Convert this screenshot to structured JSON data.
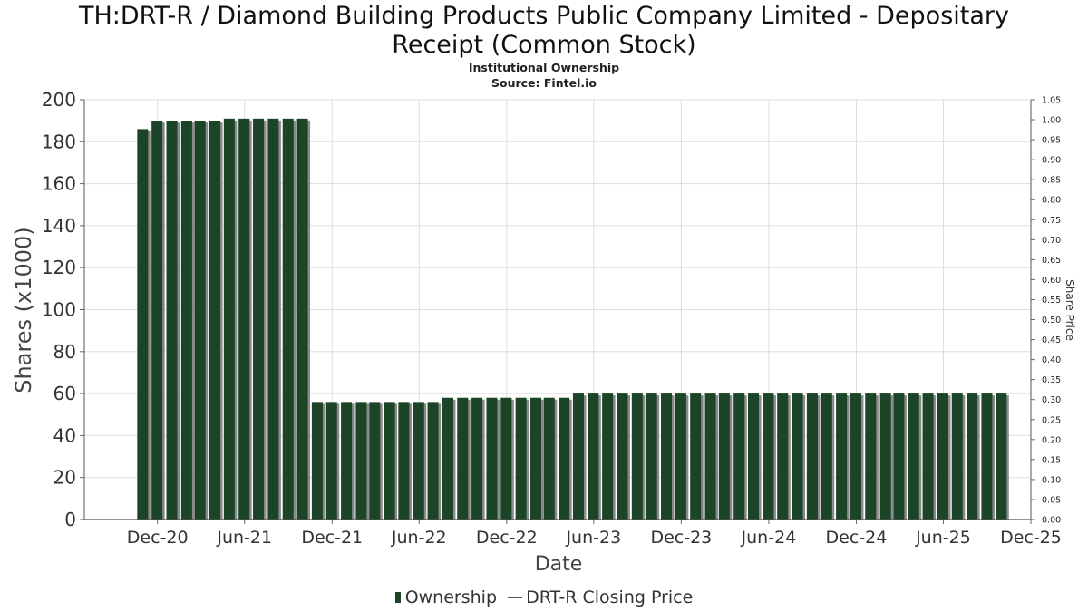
{
  "header": {
    "title_line1": "TH:DRT-R / Diamond Building Products Public Company Limited - Depositary",
    "title_line2": "Receipt (Common Stock)",
    "subtitle_line1": "Institutional Ownership",
    "subtitle_line2": "Source: Fintel.io"
  },
  "legend": {
    "ownership": "Ownership",
    "price": "DRT-R Closing Price"
  },
  "colors": {
    "bar": "#1b4526",
    "bar_shadow": "#8a8a8a",
    "grid": "#dddddd",
    "axis": "#888888"
  },
  "chart_data": {
    "type": "bar",
    "xlabel": "Date",
    "ylabel": "Shares (x1000)",
    "y2label": "Share Price",
    "ylim": [
      0,
      200
    ],
    "yticks": [
      0,
      20,
      40,
      60,
      80,
      100,
      120,
      140,
      160,
      180,
      200
    ],
    "y2lim": [
      0,
      1.05
    ],
    "y2ticks": [
      "0.00",
      "0.05",
      "0.10",
      "0.15",
      "0.20",
      "0.25",
      "0.30",
      "0.35",
      "0.40",
      "0.45",
      "0.50",
      "0.55",
      "0.60",
      "0.65",
      "0.70",
      "0.75",
      "0.80",
      "0.85",
      "0.90",
      "0.95",
      "1.00",
      "1.05"
    ],
    "xlim": [
      "2020-07-01",
      "2025-12-01"
    ],
    "xticks": [
      {
        "label": "Dec-20",
        "date": "2020-12-01"
      },
      {
        "label": "Jun-21",
        "date": "2021-06-01"
      },
      {
        "label": "Dec-21",
        "date": "2021-12-01"
      },
      {
        "label": "Jun-22",
        "date": "2022-06-01"
      },
      {
        "label": "Dec-22",
        "date": "2022-12-01"
      },
      {
        "label": "Jun-23",
        "date": "2023-06-01"
      },
      {
        "label": "Dec-23",
        "date": "2023-12-01"
      },
      {
        "label": "Jun-24",
        "date": "2024-06-01"
      },
      {
        "label": "Dec-24",
        "date": "2024-12-01"
      },
      {
        "label": "Jun-25",
        "date": "2025-06-01"
      },
      {
        "label": "Dec-25",
        "date": "2025-12-01"
      }
    ],
    "grid": true,
    "legend_position": "bottom",
    "series": [
      {
        "name": "Ownership",
        "points": [
          {
            "date": "2020-10-31",
            "value": 186
          },
          {
            "date": "2020-11-30",
            "value": 190
          },
          {
            "date": "2020-12-31",
            "value": 190
          },
          {
            "date": "2021-01-31",
            "value": 190
          },
          {
            "date": "2021-02-28",
            "value": 190
          },
          {
            "date": "2021-03-31",
            "value": 190
          },
          {
            "date": "2021-04-30",
            "value": 191
          },
          {
            "date": "2021-05-31",
            "value": 191
          },
          {
            "date": "2021-06-30",
            "value": 191
          },
          {
            "date": "2021-07-31",
            "value": 191
          },
          {
            "date": "2021-08-31",
            "value": 191
          },
          {
            "date": "2021-09-30",
            "value": 191
          },
          {
            "date": "2021-10-31",
            "value": 56
          },
          {
            "date": "2021-11-30",
            "value": 56
          },
          {
            "date": "2021-12-31",
            "value": 56
          },
          {
            "date": "2022-01-31",
            "value": 56
          },
          {
            "date": "2022-02-28",
            "value": 56
          },
          {
            "date": "2022-03-31",
            "value": 56
          },
          {
            "date": "2022-04-30",
            "value": 56
          },
          {
            "date": "2022-05-31",
            "value": 56
          },
          {
            "date": "2022-06-30",
            "value": 56
          },
          {
            "date": "2022-07-31",
            "value": 58
          },
          {
            "date": "2022-08-31",
            "value": 58
          },
          {
            "date": "2022-09-30",
            "value": 58
          },
          {
            "date": "2022-10-31",
            "value": 58
          },
          {
            "date": "2022-11-30",
            "value": 58
          },
          {
            "date": "2022-12-31",
            "value": 58
          },
          {
            "date": "2023-01-31",
            "value": 58
          },
          {
            "date": "2023-02-28",
            "value": 58
          },
          {
            "date": "2023-03-31",
            "value": 58
          },
          {
            "date": "2023-04-30",
            "value": 60
          },
          {
            "date": "2023-05-31",
            "value": 60
          },
          {
            "date": "2023-06-30",
            "value": 60
          },
          {
            "date": "2023-07-31",
            "value": 60
          },
          {
            "date": "2023-08-31",
            "value": 60
          },
          {
            "date": "2023-09-30",
            "value": 60
          },
          {
            "date": "2023-10-31",
            "value": 60
          },
          {
            "date": "2023-11-30",
            "value": 60
          },
          {
            "date": "2023-12-31",
            "value": 60
          },
          {
            "date": "2024-01-31",
            "value": 60
          },
          {
            "date": "2024-02-29",
            "value": 60
          },
          {
            "date": "2024-03-31",
            "value": 60
          },
          {
            "date": "2024-04-30",
            "value": 60
          },
          {
            "date": "2024-05-31",
            "value": 60
          },
          {
            "date": "2024-06-30",
            "value": 60
          },
          {
            "date": "2024-07-31",
            "value": 60
          },
          {
            "date": "2024-08-31",
            "value": 60
          },
          {
            "date": "2024-09-30",
            "value": 60
          },
          {
            "date": "2024-10-31",
            "value": 60
          },
          {
            "date": "2024-11-30",
            "value": 60
          },
          {
            "date": "2024-12-31",
            "value": 60
          },
          {
            "date": "2025-01-31",
            "value": 60
          },
          {
            "date": "2025-02-28",
            "value": 60
          },
          {
            "date": "2025-03-31",
            "value": 60
          },
          {
            "date": "2025-04-30",
            "value": 60
          },
          {
            "date": "2025-05-31",
            "value": 60
          },
          {
            "date": "2025-06-30",
            "value": 60
          },
          {
            "date": "2025-07-31",
            "value": 60
          },
          {
            "date": "2025-08-31",
            "value": 60
          },
          {
            "date": "2025-09-30",
            "value": 60
          }
        ]
      }
    ]
  }
}
